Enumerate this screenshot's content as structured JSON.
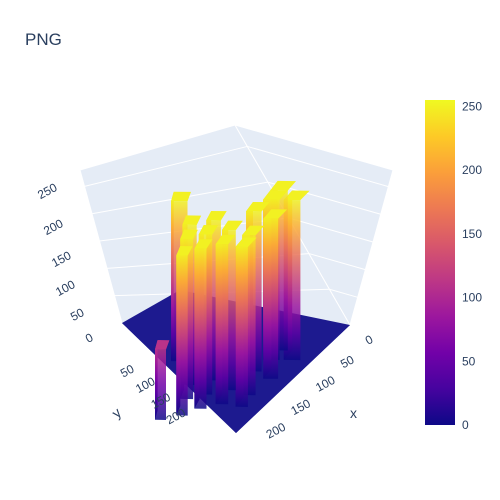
{
  "chart_data": {
    "type": "surface",
    "title": "PNG",
    "x_axis": {
      "label": "x",
      "ticks": [
        0,
        50,
        100,
        150,
        200
      ],
      "range": [
        0,
        230
      ]
    },
    "y_axis": {
      "label": "y",
      "ticks": [
        50,
        100,
        150,
        200
      ],
      "range": [
        0,
        230
      ]
    },
    "z_axis": {
      "label": "",
      "ticks": [
        0,
        50,
        100,
        150,
        200,
        250
      ],
      "range": [
        0,
        255
      ]
    },
    "colorbar": {
      "ticks": [
        0,
        50,
        100,
        150,
        200,
        250
      ],
      "range": [
        0,
        255
      ]
    },
    "colorscale": [
      "#0d0887",
      "#46039f",
      "#7201a8",
      "#9c179e",
      "#bd3786",
      "#d8576b",
      "#ed7953",
      "#fb9f3a",
      "#fdca26",
      "#f0f921"
    ],
    "columns": [
      {
        "x": [
          55,
          75
        ],
        "y": [
          15,
          35
        ],
        "z": 250
      },
      {
        "x": [
          35,
          55
        ],
        "y": [
          40,
          60
        ],
        "z": 250
      },
      {
        "x": [
          55,
          75
        ],
        "y": [
          40,
          60
        ],
        "z": 250
      },
      {
        "x": [
          95,
          115
        ],
        "y": [
          20,
          40
        ],
        "z": 250
      },
      {
        "x": [
          80,
          100
        ],
        "y": [
          50,
          70
        ],
        "z": 250
      },
      {
        "x": [
          130,
          150
        ],
        "y": [
          30,
          50
        ],
        "z": 250
      },
      {
        "x": [
          155,
          175
        ],
        "y": [
          25,
          45
        ],
        "z": 250
      },
      {
        "x": [
          120,
          140
        ],
        "y": [
          65,
          85
        ],
        "z": 250
      },
      {
        "x": [
          150,
          170
        ],
        "y": [
          60,
          80
        ],
        "z": 250
      },
      {
        "x": [
          100,
          120
        ],
        "y": [
          95,
          115
        ],
        "z": 250
      },
      {
        "x": [
          130,
          150
        ],
        "y": [
          95,
          115
        ],
        "z": 250
      },
      {
        "x": [
          160,
          180
        ],
        "y": [
          90,
          110
        ],
        "z": 250
      },
      {
        "x": [
          110,
          130
        ],
        "y": [
          125,
          145
        ],
        "z": 250
      },
      {
        "x": [
          140,
          160
        ],
        "y": [
          120,
          140
        ],
        "z": 250
      },
      {
        "x": [
          175,
          195
        ],
        "y": [
          115,
          135
        ],
        "z": 250
      },
      {
        "x": [
          60,
          80
        ],
        "y": [
          150,
          170
        ],
        "z": 250
      },
      {
        "x": [
          185,
          205
        ],
        "y": [
          150,
          170
        ],
        "z": 110
      }
    ]
  }
}
